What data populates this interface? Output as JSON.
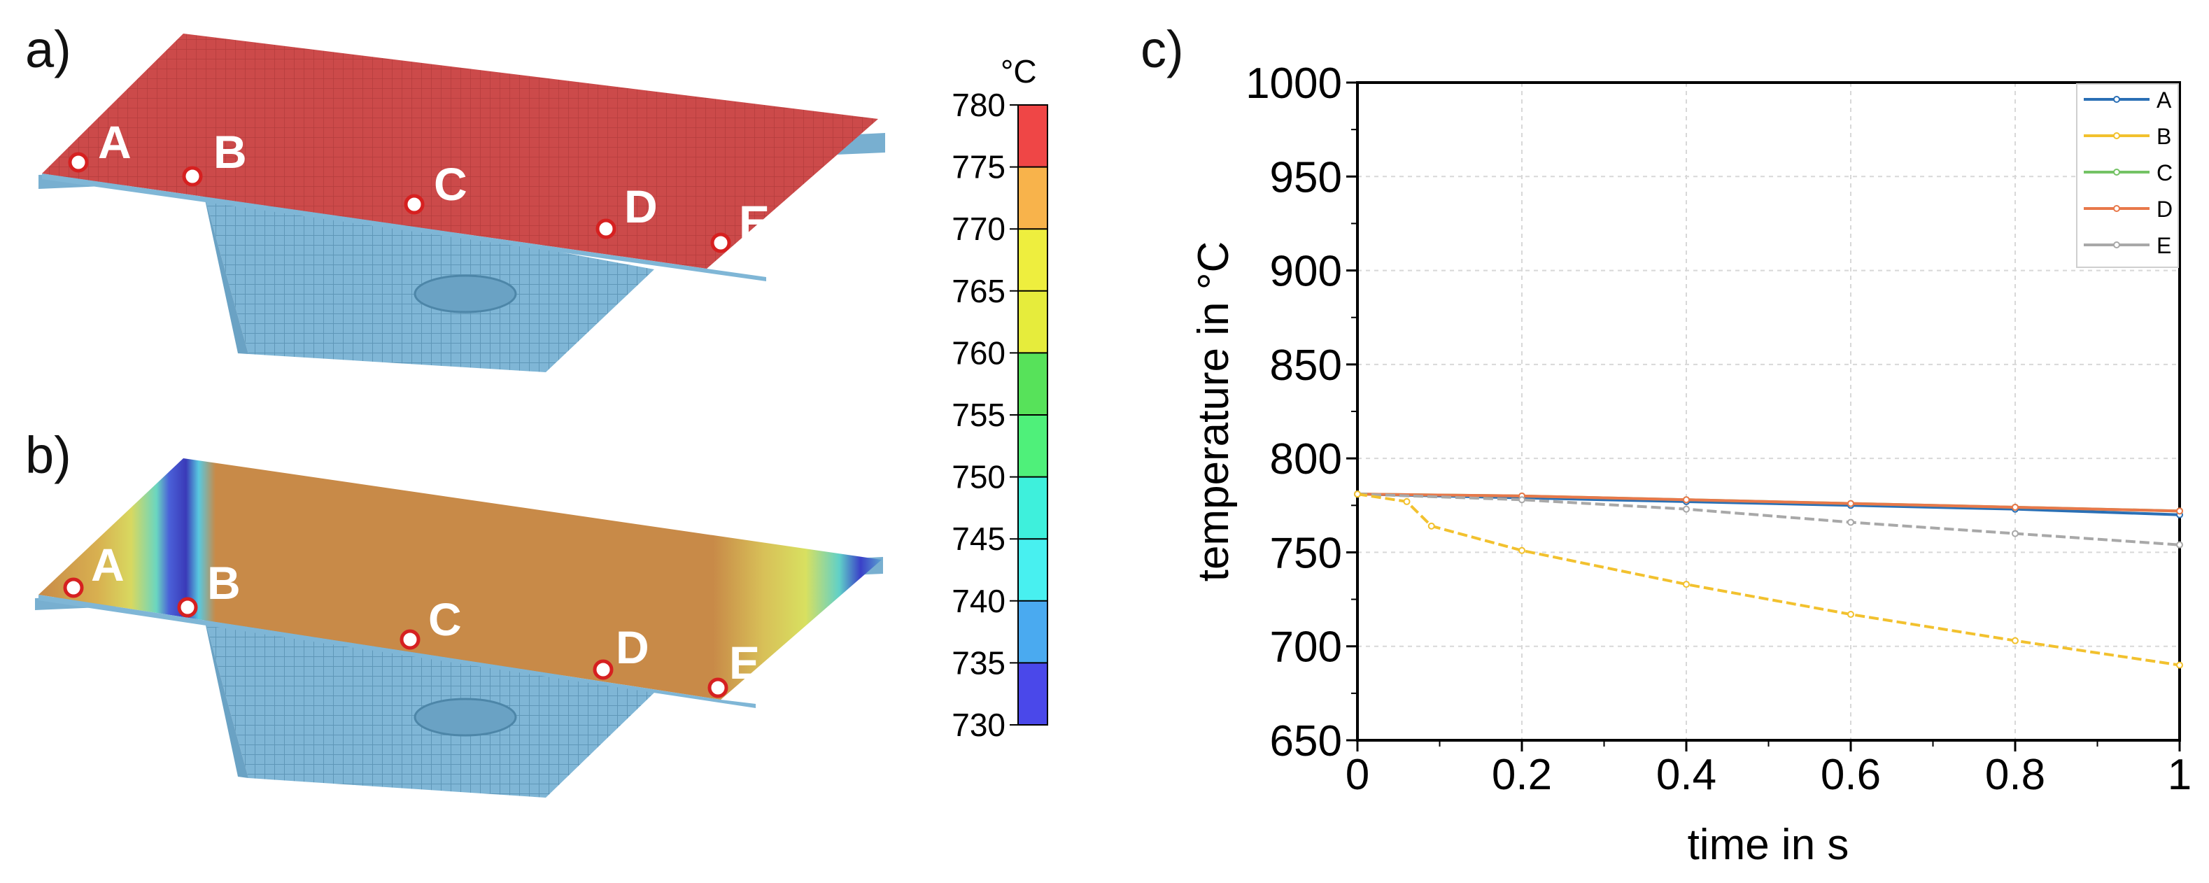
{
  "panels": {
    "a": "a)",
    "b": "b)",
    "c": "c)"
  },
  "points": [
    "A",
    "B",
    "C",
    "D",
    "E"
  ],
  "colorbar": {
    "unit": "°C",
    "ticks": [
      "780",
      "775",
      "770",
      "765",
      "760",
      "755",
      "750",
      "745",
      "740",
      "735",
      "730"
    ],
    "band_colors": [
      "#ef4646",
      "#f8b34b",
      "#eeee3e",
      "#e6ec3c",
      "#57e25a",
      "#4ff07a",
      "#3ef0dc",
      "#48f0f0",
      "#4aaaf0",
      "#4a48ea"
    ]
  },
  "chart_data": {
    "type": "line",
    "title": "",
    "xlabel": "time in s",
    "ylabel": "temperature in °C",
    "xlim": [
      0,
      1
    ],
    "ylim": [
      650,
      1000
    ],
    "x_ticks": [
      "0",
      "0.2",
      "0.4",
      "0.6",
      "0.8",
      "1"
    ],
    "y_ticks": [
      "650",
      "700",
      "750",
      "800",
      "850",
      "900",
      "950",
      "1000"
    ],
    "grid": true,
    "legend_position": "top-right",
    "series": [
      {
        "name": "A",
        "color": "#2a6fb5",
        "x": [
          0,
          0.2,
          0.4,
          0.6,
          0.8,
          1
        ],
        "y": [
          781,
          779,
          777,
          775,
          773,
          770
        ]
      },
      {
        "name": "B",
        "color": "#f2c12e",
        "x": [
          0,
          0.06,
          0.09,
          0.2,
          0.4,
          0.6,
          0.8,
          1
        ],
        "y": [
          781,
          777,
          764,
          751,
          733,
          717,
          703,
          690
        ]
      },
      {
        "name": "C",
        "color": "#74c365",
        "x": [
          0,
          0.2,
          0.4,
          0.6,
          0.8,
          1
        ],
        "y": [
          781,
          780,
          778,
          776,
          774,
          772
        ]
      },
      {
        "name": "D",
        "color": "#e8784a",
        "x": [
          0,
          0.2,
          0.4,
          0.6,
          0.8,
          1
        ],
        "y": [
          781,
          780,
          778,
          776,
          774,
          772
        ]
      },
      {
        "name": "E",
        "color": "#a8a8a8",
        "x": [
          0,
          0.2,
          0.4,
          0.6,
          0.8,
          1
        ],
        "y": [
          781,
          778,
          773,
          766,
          760,
          754
        ]
      }
    ]
  }
}
